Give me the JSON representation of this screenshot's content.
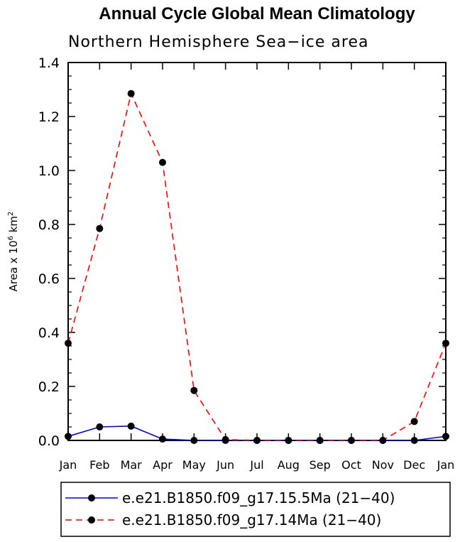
{
  "chart_data": {
    "type": "line",
    "title": "Annual Cycle Global Mean Climatology",
    "subtitle": "Northern Hemisphere Sea−ice area",
    "ylabel": "Area x 10",
    "ylabel_sup": "6",
    "ylabel_unit": "km",
    "ylabel_unit_sup": "2",
    "xlabel": "",
    "ylim": [
      0.0,
      1.4
    ],
    "y_ticks": [
      "0.0",
      "0.2",
      "0.4",
      "0.6",
      "0.8",
      "1.0",
      "1.2",
      "1.4"
    ],
    "categories": [
      "Jan",
      "Feb",
      "Mar",
      "Apr",
      "May",
      "Jun",
      "Jul",
      "Aug",
      "Sep",
      "Oct",
      "Nov",
      "Dec",
      "Jan"
    ],
    "series": [
      {
        "name": "e.e21.B1850.f09_g17.15.5Ma (21−40)",
        "color": "#0000ff",
        "dash": "solid",
        "values": [
          0.015,
          0.05,
          0.053,
          0.005,
          0.0,
          0.0,
          0.0,
          0.0,
          0.0,
          0.0,
          0.0,
          0.0,
          0.015
        ]
      },
      {
        "name": "e.e21.B1850.f09_g17.14Ma (21−40)",
        "color": "#ff0000",
        "dash": "dashed",
        "values": [
          0.36,
          0.785,
          1.285,
          1.03,
          0.185,
          0.003,
          0.0,
          0.0,
          0.0,
          0.0,
          0.0,
          0.07,
          0.36
        ]
      }
    ],
    "grid": false,
    "legend_position": "bottom"
  }
}
